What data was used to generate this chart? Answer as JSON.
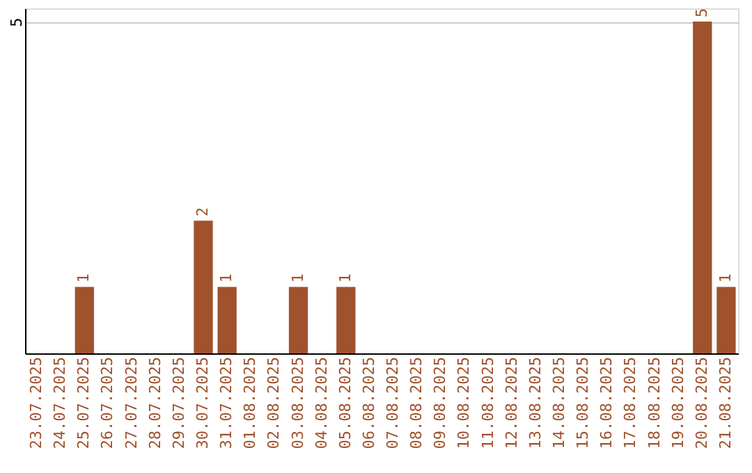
{
  "chart_data": {
    "type": "bar",
    "categories": [
      "23.07.2025",
      "24.07.2025",
      "25.07.2025",
      "26.07.2025",
      "27.07.2025",
      "28.07.2025",
      "29.07.2025",
      "30.07.2025",
      "31.07.2025",
      "01.08.2025",
      "02.08.2025",
      "03.08.2025",
      "04.08.2025",
      "05.08.2025",
      "06.08.2025",
      "07.08.2025",
      "08.08.2025",
      "09.08.2025",
      "10.08.2025",
      "11.08.2025",
      "12.08.2025",
      "13.08.2025",
      "14.08.2025",
      "15.08.2025",
      "16.08.2025",
      "17.08.2025",
      "18.08.2025",
      "19.08.2025",
      "20.08.2025",
      "21.08.2025"
    ],
    "values": [
      0,
      0,
      1,
      0,
      0,
      0,
      0,
      2,
      1,
      0,
      0,
      1,
      0,
      1,
      0,
      0,
      0,
      0,
      0,
      0,
      0,
      0,
      0,
      0,
      0,
      0,
      0,
      0,
      5,
      1
    ],
    "value_labels": [
      null,
      null,
      "1",
      null,
      null,
      null,
      null,
      "2",
      "1",
      null,
      null,
      "1",
      null,
      "1",
      null,
      null,
      null,
      null,
      null,
      null,
      null,
      null,
      null,
      null,
      null,
      null,
      null,
      null,
      "5",
      "1"
    ],
    "color": "#a0522d",
    "ylim": [
      0,
      5.2
    ],
    "yticks": [
      5
    ],
    "grid": "y"
  }
}
